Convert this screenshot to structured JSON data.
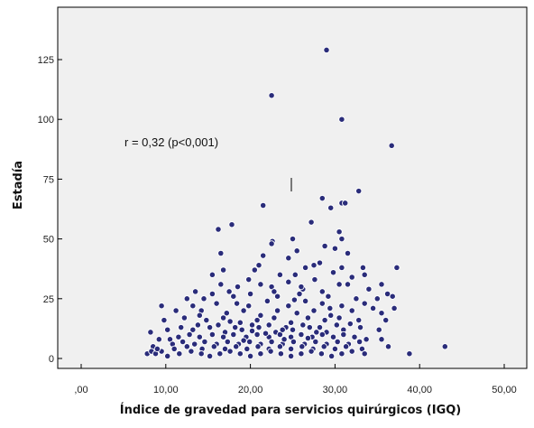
{
  "chart_data": {
    "type": "scatter",
    "title": "",
    "xlabel": "Índice de gravedad para servicios quirúrgicos (IGQ)",
    "ylabel": "Estadía",
    "xlim": [
      0,
      50
    ],
    "ylim": [
      -5,
      140
    ],
    "x_ticks": [
      {
        "value": 0,
        "label": ",00"
      },
      {
        "value": 10,
        "label": "10,00"
      },
      {
        "value": 20,
        "label": "20,00"
      },
      {
        "value": 30,
        "label": "30,00"
      },
      {
        "value": 40,
        "label": "40,00"
      },
      {
        "value": 50,
        "label": "50,00"
      }
    ],
    "y_ticks": [
      {
        "value": 0,
        "label": "0"
      },
      {
        "value": 25,
        "label": "25"
      },
      {
        "value": 50,
        "label": "50"
      },
      {
        "value": 75,
        "label": "75"
      },
      {
        "value": 100,
        "label": "100"
      },
      {
        "value": 125,
        "label": "125"
      }
    ],
    "annotation": "r = 0,32 (p<0,001)",
    "grid": false,
    "background": "#f0f0f0",
    "marker_color": "#2a2c7a",
    "marker_edge": "#ffffff",
    "series": [
      {
        "points": [
          [
            29,
            129
          ],
          [
            22.5,
            110
          ],
          [
            30.8,
            100
          ],
          [
            36.7,
            89
          ],
          [
            28.5,
            67
          ],
          [
            32.8,
            70
          ],
          [
            30.8,
            65
          ],
          [
            31.2,
            65
          ],
          [
            21.5,
            64
          ],
          [
            29.5,
            63
          ],
          [
            17.8,
            56
          ],
          [
            16.2,
            54
          ],
          [
            27.2,
            57
          ],
          [
            30.5,
            53
          ],
          [
            22.6,
            49
          ],
          [
            22.5,
            48
          ],
          [
            25,
            50
          ],
          [
            30,
            46
          ],
          [
            30.8,
            50
          ],
          [
            16.5,
            44
          ],
          [
            21.5,
            43
          ],
          [
            24.5,
            42
          ],
          [
            31.5,
            44
          ],
          [
            28.2,
            40
          ],
          [
            16.8,
            37
          ],
          [
            21,
            39
          ],
          [
            26.5,
            38
          ],
          [
            27.5,
            39
          ],
          [
            30.8,
            38
          ],
          [
            33.3,
            38
          ],
          [
            37.3,
            38
          ],
          [
            15.5,
            35
          ],
          [
            19.8,
            33
          ],
          [
            23.5,
            35
          ],
          [
            25.3,
            35
          ],
          [
            29.8,
            36
          ],
          [
            32,
            34
          ],
          [
            33.5,
            35
          ],
          [
            16.5,
            31
          ],
          [
            18.5,
            30
          ],
          [
            21.2,
            31
          ],
          [
            24.5,
            32
          ],
          [
            27.6,
            33
          ],
          [
            31.5,
            31
          ],
          [
            35.5,
            31
          ],
          [
            13.5,
            28
          ],
          [
            15.5,
            27
          ],
          [
            17.5,
            28
          ],
          [
            22.5,
            30
          ],
          [
            26.2,
            29
          ],
          [
            28.5,
            28
          ],
          [
            30.5,
            31
          ],
          [
            34,
            29
          ],
          [
            36.2,
            27
          ],
          [
            36.8,
            26
          ],
          [
            12.5,
            25
          ],
          [
            14.5,
            25
          ],
          [
            18,
            26
          ],
          [
            20,
            27
          ],
          [
            23.2,
            26
          ],
          [
            25.8,
            27
          ],
          [
            29.2,
            26
          ],
          [
            32.5,
            25
          ],
          [
            35,
            25
          ],
          [
            9.5,
            22
          ],
          [
            13.2,
            22
          ],
          [
            16,
            23
          ],
          [
            19.8,
            22
          ],
          [
            22,
            24
          ],
          [
            24.5,
            22
          ],
          [
            26.5,
            24
          ],
          [
            28.5,
            23
          ],
          [
            30.8,
            22
          ],
          [
            33.5,
            23
          ],
          [
            37,
            21
          ],
          [
            11.2,
            20
          ],
          [
            14.2,
            20
          ],
          [
            17.2,
            19
          ],
          [
            19.2,
            20
          ],
          [
            21.2,
            18
          ],
          [
            23.2,
            20
          ],
          [
            25.5,
            19
          ],
          [
            27.5,
            20
          ],
          [
            29.5,
            18
          ],
          [
            32,
            20
          ],
          [
            35.5,
            19
          ],
          [
            9.8,
            16
          ],
          [
            12.2,
            17
          ],
          [
            14.8,
            16
          ],
          [
            16.8,
            17
          ],
          [
            18.8,
            15
          ],
          [
            20.8,
            16
          ],
          [
            22.8,
            17
          ],
          [
            24.8,
            15
          ],
          [
            26.8,
            17
          ],
          [
            28.8,
            16
          ],
          [
            30.5,
            17
          ],
          [
            32.8,
            16
          ],
          [
            36,
            16
          ],
          [
            8.2,
            11
          ],
          [
            10.2,
            12
          ],
          [
            11.8,
            13
          ],
          [
            13.2,
            12
          ],
          [
            15.2,
            13
          ],
          [
            17,
            11
          ],
          [
            19,
            12
          ],
          [
            21,
            13
          ],
          [
            23,
            11
          ],
          [
            25,
            12
          ],
          [
            27,
            13
          ],
          [
            29,
            11
          ],
          [
            31,
            12
          ],
          [
            33,
            13
          ],
          [
            35.2,
            12
          ],
          [
            9.2,
            8
          ],
          [
            10.5,
            8
          ],
          [
            11.5,
            9
          ],
          [
            12.8,
            10
          ],
          [
            14,
            9
          ],
          [
            15.5,
            10
          ],
          [
            16.8,
            9
          ],
          [
            18,
            10
          ],
          [
            19.5,
            9
          ],
          [
            20.8,
            10
          ],
          [
            22.2,
            9
          ],
          [
            23.5,
            10
          ],
          [
            24.8,
            9
          ],
          [
            26,
            10
          ],
          [
            27.3,
            9
          ],
          [
            28.5,
            10
          ],
          [
            29.8,
            9
          ],
          [
            31,
            10
          ],
          [
            32.3,
            9
          ],
          [
            33.7,
            8
          ],
          [
            35.5,
            8
          ],
          [
            10.8,
            6
          ],
          [
            12,
            7
          ],
          [
            13.4,
            6
          ],
          [
            14.6,
            7
          ],
          [
            16,
            6
          ],
          [
            17.3,
            7
          ],
          [
            18.6,
            6
          ],
          [
            19.9,
            7
          ],
          [
            21.2,
            6
          ],
          [
            22.5,
            7
          ],
          [
            23.8,
            6
          ],
          [
            25.1,
            7
          ],
          [
            26.4,
            6
          ],
          [
            27.7,
            7
          ],
          [
            29,
            6
          ],
          [
            30.3,
            7
          ],
          [
            31.6,
            6
          ],
          [
            32.9,
            7
          ],
          [
            8.5,
            5
          ],
          [
            12.5,
            5
          ],
          [
            14.3,
            4
          ],
          [
            15.7,
            5
          ],
          [
            17,
            4
          ],
          [
            18.3,
            5
          ],
          [
            19.6,
            4
          ],
          [
            20.9,
            5
          ],
          [
            22.2,
            4
          ],
          [
            23.5,
            5
          ],
          [
            24.8,
            4
          ],
          [
            26.1,
            5
          ],
          [
            27.4,
            4
          ],
          [
            28.7,
            5
          ],
          [
            30,
            4
          ],
          [
            31.3,
            5
          ],
          [
            33.2,
            4
          ],
          [
            36.3,
            5
          ],
          [
            43,
            5
          ],
          [
            7.8,
            2
          ],
          [
            8.3,
            3
          ],
          [
            8.8,
            2
          ],
          [
            9.5,
            3
          ],
          [
            10.2,
            1
          ],
          [
            11.6,
            2
          ],
          [
            13,
            3
          ],
          [
            14.2,
            2
          ],
          [
            15.2,
            1
          ],
          [
            16.4,
            2
          ],
          [
            17.6,
            3
          ],
          [
            18.8,
            2
          ],
          [
            20,
            1
          ],
          [
            21.2,
            2
          ],
          [
            22.4,
            3
          ],
          [
            23.6,
            2
          ],
          [
            24.8,
            1
          ],
          [
            26,
            2
          ],
          [
            27.2,
            3
          ],
          [
            28.4,
            2
          ],
          [
            29.6,
            1
          ],
          [
            30.8,
            2
          ],
          [
            32,
            3
          ],
          [
            33.5,
            2
          ],
          [
            38.8,
            2
          ],
          [
            16.2,
            14
          ],
          [
            18.2,
            13
          ],
          [
            20.2,
            14
          ],
          [
            22.2,
            14
          ],
          [
            24.2,
            13
          ],
          [
            26.2,
            14
          ],
          [
            28.2,
            13
          ],
          [
            30.2,
            14
          ],
          [
            13.8,
            14
          ],
          [
            11,
            4
          ],
          [
            9,
            4
          ],
          [
            25.5,
            45
          ],
          [
            28.8,
            47
          ],
          [
            20.5,
            37
          ],
          [
            26,
            30
          ],
          [
            14,
            18
          ],
          [
            34.5,
            21
          ],
          [
            23.8,
            12
          ],
          [
            27.8,
            11
          ],
          [
            21.8,
            10.5
          ],
          [
            19.2,
            7.5
          ],
          [
            24,
            8
          ],
          [
            26.8,
            8.5
          ],
          [
            20.2,
            11.5
          ],
          [
            31.8,
            14.5
          ],
          [
            17.6,
            15.5
          ],
          [
            29.4,
            21
          ],
          [
            25.2,
            24.5
          ],
          [
            22.8,
            28
          ],
          [
            18.4,
            23
          ]
        ]
      }
    ]
  }
}
